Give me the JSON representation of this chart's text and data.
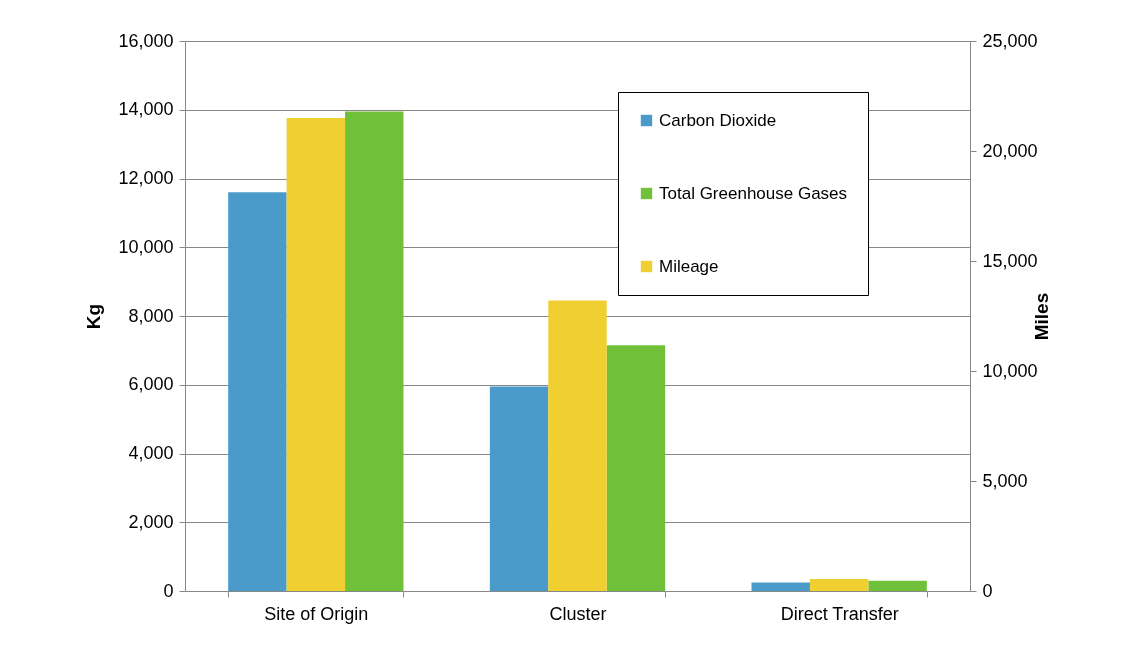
{
  "chart_data": {
    "type": "bar",
    "categories": [
      "Site of Origin",
      "Cluster",
      "Direct Transfer"
    ],
    "ylabel": "Kg",
    "y2label": "Miles",
    "ylim": [
      0,
      16000
    ],
    "yticks": [
      0,
      {
        "value": 2000,
        "label": "2,000"
      },
      {
        "value": 4000,
        "label": "4,000"
      },
      {
        "value": 6000,
        "label": "6,000"
      },
      {
        "value": 8000,
        "label": "8,000"
      },
      {
        "value": 10000,
        "label": "10,000"
      },
      {
        "value": 12000,
        "label": "12,000"
      },
      {
        "value": 14000,
        "label": "14,000"
      },
      {
        "value": 16000,
        "label": "16,000"
      }
    ],
    "y2lim": [
      0,
      25000
    ],
    "y2ticks": [
      0,
      {
        "value": 5000,
        "label": "5,000"
      },
      {
        "value": 10000,
        "label": "10,000"
      },
      {
        "value": 15000,
        "label": "15,000"
      },
      {
        "value": 20000,
        "label": "20,000"
      },
      {
        "value": 25000,
        "label": "25,000"
      }
    ],
    "grid": "y",
    "legend": "top right",
    "series": [
      {
        "name": "Carbon Dioxide",
        "color": "#4a9bca",
        "values": [
          11600,
          5950,
          250
        ]
      },
      {
        "name": "Mileage",
        "color": "#f0d030",
        "axis": "y2",
        "values": [
          21500,
          13200,
          550
        ]
      },
      {
        "name": "Total Greenhouse Gases",
        "color": "#70c03a",
        "values": [
          13950,
          7150,
          300
        ]
      }
    ]
  }
}
